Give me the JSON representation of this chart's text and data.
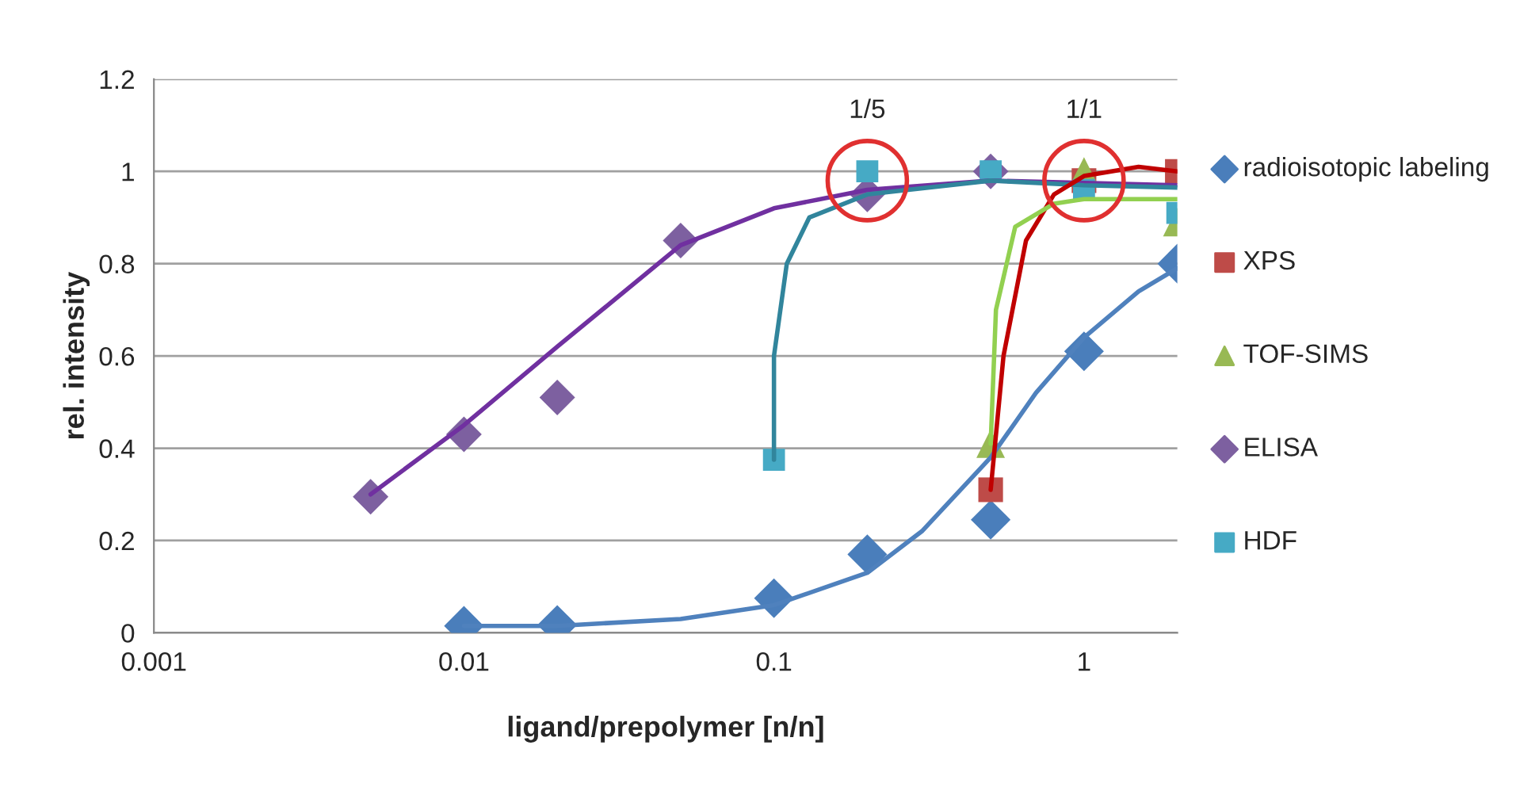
{
  "chart_data": {
    "type": "scatter",
    "xlabel": "ligand/prepolymer [n/n]",
    "ylabel": "rel. intensity",
    "log": "x",
    "xlim": [
      0.001,
      2
    ],
    "xticks": [
      0.001,
      0.01,
      0.1,
      1
    ],
    "ylim": [
      0,
      1.2
    ],
    "yticks": [
      0,
      0.2,
      0.4,
      0.6,
      0.8,
      1,
      1.2
    ],
    "grid": "y",
    "legend": "right",
    "series": [
      {
        "type": "line",
        "marker": "none",
        "line_style": "solid",
        "color": "#4f81bd",
        "x": [
          0.01,
          0.02,
          0.05,
          0.1,
          0.2,
          0.3,
          0.5,
          0.7,
          1,
          1.5,
          2
        ],
        "values": [
          0.015,
          0.015,
          0.03,
          0.06,
          0.13,
          0.22,
          0.38,
          0.52,
          0.64,
          0.74,
          0.79
        ]
      },
      {
        "type": "line",
        "marker": "none",
        "line_style": "solid",
        "color": "#7030a0",
        "x": [
          0.005,
          0.01,
          0.02,
          0.05,
          0.1,
          0.2,
          0.5,
          2
        ],
        "values": [
          0.3,
          0.45,
          0.62,
          0.84,
          0.92,
          0.96,
          0.98,
          0.97
        ]
      },
      {
        "type": "line",
        "marker": "none",
        "line_style": "solid",
        "color": "#31859c",
        "x": [
          0.1,
          0.1,
          0.11,
          0.13,
          0.2,
          0.5,
          1,
          2
        ],
        "values": [
          0.375,
          0.6,
          0.8,
          0.9,
          0.95,
          0.98,
          0.97,
          0.965
        ]
      },
      {
        "type": "line",
        "marker": "none",
        "line_style": "solid",
        "color": "#c00000",
        "x": [
          0.5,
          0.55,
          0.65,
          0.8,
          1,
          1.5,
          2
        ],
        "values": [
          0.31,
          0.6,
          0.85,
          0.95,
          0.99,
          1.01,
          1.0
        ]
      },
      {
        "type": "line",
        "marker": "none",
        "line_style": "solid",
        "color": "#92d050",
        "x": [
          0.5,
          0.52,
          0.6,
          0.8,
          1,
          2
        ],
        "values": [
          0.41,
          0.7,
          0.88,
          0.93,
          0.94,
          0.94
        ]
      },
      {
        "name": "radioisotopic labeling",
        "marker": "diamond",
        "color": "#4a7ebb",
        "x": [
          0.01,
          0.02,
          0.1,
          0.2,
          0.5,
          1,
          2
        ],
        "values": [
          0.015,
          0.017,
          0.075,
          0.17,
          0.245,
          0.61,
          0.8
        ]
      },
      {
        "name": "XPS",
        "marker": "square",
        "color": "#be4b48",
        "x": [
          0.5,
          1,
          2
        ],
        "values": [
          0.31,
          0.98,
          1.0
        ]
      },
      {
        "name": "TOF-SIMS",
        "marker": "triangle",
        "color": "#98b954",
        "x": [
          0.5,
          1,
          2
        ],
        "values": [
          0.41,
          1.0,
          0.89
        ]
      },
      {
        "name": "ELISA",
        "marker": "diamond",
        "color": "#7d60a0",
        "x": [
          0.005,
          0.01,
          0.02,
          0.05,
          0.2,
          0.5
        ],
        "values": [
          0.295,
          0.43,
          0.51,
          0.85,
          0.95,
          1.0
        ]
      },
      {
        "name": "HDF",
        "marker": "square",
        "color": "#46aac5",
        "x": [
          0.1,
          0.2,
          0.5,
          1,
          2
        ],
        "values": [
          0.375,
          1.0,
          1.0,
          0.96,
          0.91
        ]
      }
    ],
    "annotations": [
      {
        "text": "1/5",
        "x": 0.2,
        "y": 0.98
      },
      {
        "text": "1/1",
        "x": 1,
        "y": 0.98
      }
    ]
  }
}
